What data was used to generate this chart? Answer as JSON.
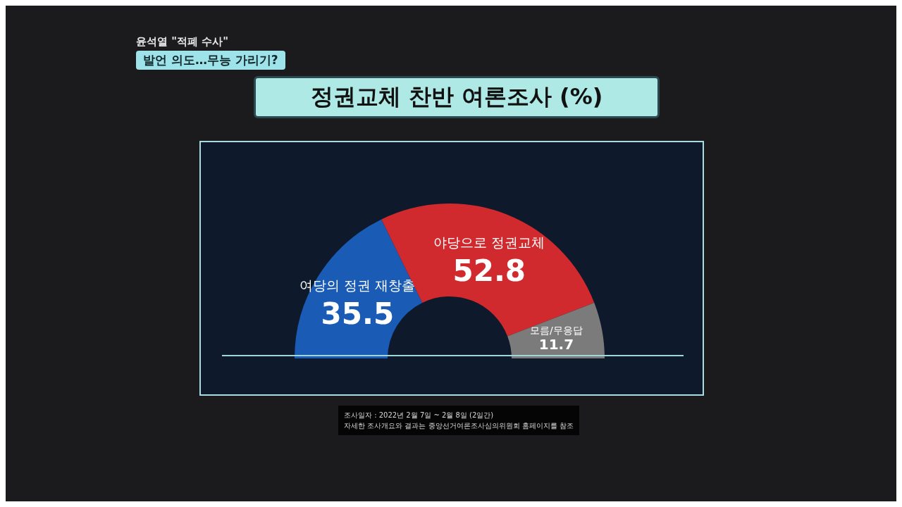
{
  "chart_data": {
    "type": "donut",
    "title": "정권교체 찬반 여론조사 (%)",
    "categories": [
      "여당의 정권 재창출",
      "야당으로 정권교체",
      "모름/무응답"
    ],
    "values": [
      35.5,
      52.8,
      11.7
    ],
    "colors": [
      "#1a5bb5",
      "#d02a2e",
      "#7b7b7b"
    ],
    "data_labels": true,
    "legend": false,
    "annotations": [
      "윤석열 \"적폐 수사\"",
      "발언 의도…무능 가리기?",
      "조사일자 : 2022년 2월 7일 ~ 2월 8일 (2일간)",
      "자세한 조사개요와 결과는 중앙선거여론조사심의위원회 홈페이지를 참조"
    ]
  }
}
